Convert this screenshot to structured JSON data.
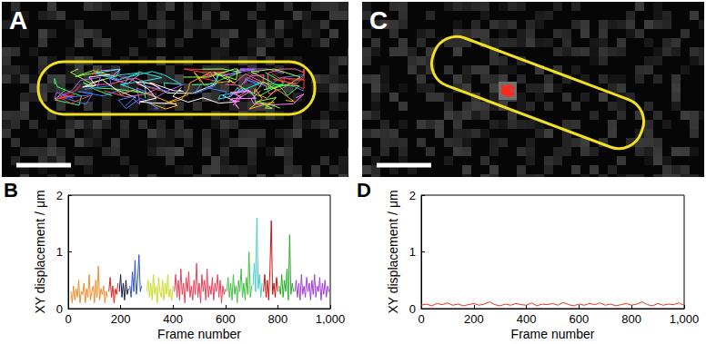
{
  "chart_data": [
    {
      "type": "image",
      "title": "A"
    },
    {
      "type": "line",
      "title": "B",
      "x_label": "Frame number",
      "y_label": "XY displacement / μm",
      "xlim": [
        0,
        1000
      ],
      "xticks": [
        0,
        200,
        400,
        600,
        800,
        1000
      ],
      "ylim": [
        0,
        2
      ],
      "yticks": [
        0,
        1,
        2
      ],
      "grid": false,
      "series": [
        {
          "color": "#f28c28",
          "x": [
            10,
            15,
            20,
            25,
            30,
            35,
            40,
            45,
            50,
            55,
            60,
            65,
            70,
            75,
            80,
            85,
            90,
            95,
            100,
            105,
            110,
            115,
            120,
            125,
            130,
            135,
            140,
            145,
            150
          ],
          "values": [
            0.3,
            0.1,
            0.4,
            0.15,
            0.35,
            0.2,
            0.5,
            0.1,
            0.3,
            0.25,
            0.45,
            0.1,
            0.35,
            0.2,
            0.6,
            0.15,
            0.3,
            0.4,
            0.1,
            0.5,
            0.2,
            0.75,
            0.15,
            0.35,
            0.25,
            0.4,
            0.1,
            0.3,
            0.2
          ]
        },
        {
          "color": "#e02020",
          "x": [
            155,
            160,
            165,
            170,
            175,
            180,
            185,
            190
          ],
          "values": [
            0.3,
            0.55,
            0.2,
            0.4,
            0.1,
            0.35,
            0.25,
            0.45
          ]
        },
        {
          "color": "#1a1a40",
          "x": [
            195,
            200,
            205,
            210,
            215,
            220,
            225,
            230
          ],
          "values": [
            0.3,
            0.6,
            0.2,
            0.45,
            0.15,
            0.5,
            0.25,
            0.35
          ]
        },
        {
          "color": "#3050d0",
          "x": [
            235,
            240,
            245,
            250,
            255,
            260,
            265,
            270,
            275,
            280
          ],
          "values": [
            0.4,
            0.2,
            0.65,
            0.3,
            0.85,
            0.25,
            0.5,
            0.95,
            0.3,
            0.4
          ]
        },
        {
          "color": "#c8e020",
          "x": [
            300,
            305,
            310,
            315,
            320,
            325,
            330,
            335,
            340,
            345,
            350,
            355,
            360,
            365,
            370,
            375,
            380,
            385,
            390,
            395,
            400
          ],
          "values": [
            0.3,
            0.5,
            0.2,
            0.45,
            0.15,
            0.6,
            0.25,
            0.4,
            0.1,
            0.55,
            0.3,
            0.2,
            0.5,
            0.15,
            0.45,
            0.25,
            0.6,
            0.2,
            0.35,
            0.15,
            0.4
          ]
        },
        {
          "color": "#e8405a",
          "x": [
            405,
            410,
            415,
            420,
            425,
            430,
            435,
            440,
            445,
            450,
            455,
            460,
            465,
            470,
            475,
            480,
            485,
            490,
            495,
            500,
            505,
            510,
            515,
            520,
            525,
            530,
            535,
            540,
            545,
            550,
            555,
            560,
            565,
            570,
            575,
            580,
            585,
            590,
            595,
            600
          ],
          "values": [
            0.3,
            0.6,
            0.2,
            0.5,
            0.15,
            0.7,
            0.25,
            0.45,
            0.1,
            0.55,
            0.3,
            0.65,
            0.2,
            0.4,
            0.15,
            0.5,
            0.25,
            0.8,
            0.2,
            0.45,
            0.1,
            0.6,
            0.3,
            0.5,
            0.15,
            0.7,
            0.2,
            0.4,
            0.25,
            0.55,
            0.15,
            0.45,
            0.3,
            0.6,
            0.2,
            0.5,
            0.1,
            0.4,
            0.25,
            0.35
          ]
        },
        {
          "color": "#40c040",
          "x": [
            605,
            610,
            615,
            620,
            625,
            630,
            635,
            640,
            645,
            650,
            655,
            660,
            665,
            670,
            675,
            680,
            685,
            690,
            695,
            700
          ],
          "values": [
            0.3,
            0.55,
            0.2,
            0.45,
            0.15,
            0.6,
            0.25,
            0.4,
            0.1,
            0.5,
            0.3,
            0.7,
            0.2,
            0.45,
            0.15,
            0.55,
            0.25,
            1.0,
            0.2,
            0.4
          ]
        },
        {
          "color": "#40d0d0",
          "x": [
            705,
            710,
            715,
            720,
            725,
            730,
            735,
            740
          ],
          "values": [
            0.4,
            0.8,
            0.3,
            1.6,
            0.35,
            0.6,
            0.2,
            0.45
          ]
        },
        {
          "color": "#d01010",
          "x": [
            745,
            750,
            755,
            760,
            765,
            770,
            775,
            780,
            785,
            790,
            795,
            800
          ],
          "values": [
            0.3,
            0.6,
            0.2,
            0.5,
            0.15,
            0.7,
            1.55,
            0.25,
            0.45,
            0.2,
            0.55,
            0.3
          ]
        },
        {
          "color": "#20b020",
          "x": [
            805,
            810,
            815,
            820,
            825,
            830,
            835,
            840,
            845,
            850,
            855,
            860
          ],
          "values": [
            0.4,
            0.25,
            0.6,
            0.2,
            0.5,
            0.3,
            0.7,
            0.15,
            1.3,
            0.25,
            0.45,
            0.3
          ]
        },
        {
          "color": "#a040d0",
          "x": [
            865,
            870,
            875,
            880,
            885,
            890,
            895,
            900,
            905,
            910,
            915,
            920,
            925,
            930,
            935,
            940,
            945,
            950,
            955,
            960,
            965,
            970,
            975,
            980,
            985,
            990,
            995,
            1000
          ],
          "values": [
            0.3,
            0.5,
            0.2,
            0.45,
            0.15,
            0.6,
            0.25,
            0.4,
            0.2,
            0.55,
            0.3,
            0.45,
            0.15,
            0.5,
            0.25,
            0.6,
            0.2,
            0.4,
            0.3,
            0.55,
            0.15,
            0.45,
            0.25,
            0.5,
            0.2,
            0.4,
            0.3,
            0.35
          ]
        }
      ]
    },
    {
      "type": "image",
      "title": "C"
    },
    {
      "type": "line",
      "title": "D",
      "x_label": "Frame number",
      "y_label": "XY displacement / μm",
      "xlim": [
        0,
        1000
      ],
      "xticks": [
        0,
        200,
        400,
        600,
        800,
        1000
      ],
      "ylim": [
        0,
        2
      ],
      "yticks": [
        0,
        1,
        2
      ],
      "grid": false,
      "series": [
        {
          "color": "#e83020",
          "x": [
            0,
            20,
            40,
            60,
            80,
            100,
            120,
            140,
            160,
            180,
            200,
            220,
            240,
            260,
            280,
            300,
            320,
            340,
            360,
            380,
            400,
            420,
            440,
            460,
            480,
            500,
            520,
            540,
            560,
            580,
            600,
            620,
            640,
            660,
            680,
            700,
            720,
            740,
            760,
            780,
            800,
            820,
            840,
            860,
            880,
            900,
            920,
            940,
            960,
            980,
            1000
          ],
          "values": [
            0.06,
            0.08,
            0.05,
            0.09,
            0.07,
            0.1,
            0.06,
            0.08,
            0.05,
            0.07,
            0.09,
            0.06,
            0.08,
            0.12,
            0.07,
            0.05,
            0.08,
            0.06,
            0.09,
            0.07,
            0.06,
            0.1,
            0.05,
            0.08,
            0.07,
            0.09,
            0.06,
            0.11,
            0.07,
            0.05,
            0.08,
            0.06,
            0.09,
            0.07,
            0.1,
            0.06,
            0.08,
            0.05,
            0.07,
            0.09,
            0.06,
            0.08,
            0.12,
            0.07,
            0.05,
            0.09,
            0.06,
            0.08,
            0.07,
            0.1,
            0.06
          ]
        }
      ]
    }
  ]
}
